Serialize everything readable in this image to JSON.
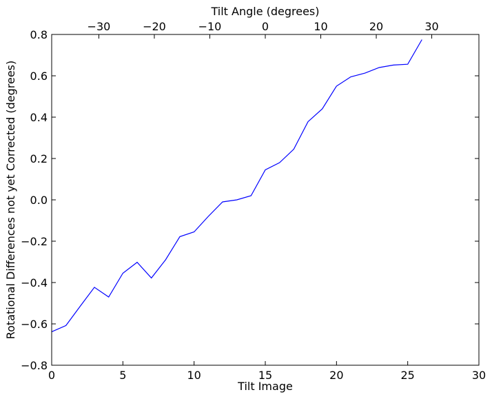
{
  "chart_data": {
    "type": "line",
    "title": "",
    "xlabel": "Tilt Image",
    "ylabel": "Rotational Differences not yet Corrected (degrees)",
    "top_xlabel": "Tilt Angle (degrees)",
    "xlim": [
      0,
      30
    ],
    "ylim": [
      -0.8,
      0.8
    ],
    "top_xlim": [
      -38.5,
      38.5
    ],
    "grid": false,
    "legend": "none",
    "line_color": "#0000ff",
    "x_ticks": [
      "0",
      "5",
      "10",
      "15",
      "20",
      "25",
      "30"
    ],
    "x_tick_values": [
      0,
      5,
      10,
      15,
      20,
      25,
      30
    ],
    "y_ticks": [
      "0.8",
      "0.6",
      "0.4",
      "0.2",
      "0.0",
      "−0.2",
      "−0.4",
      "−0.6",
      "−0.8"
    ],
    "y_tick_values": [
      0.8,
      0.6,
      0.4,
      0.2,
      0.0,
      -0.2,
      -0.4,
      -0.6,
      -0.8
    ],
    "top_x_ticks": [
      "−30",
      "−20",
      "−10",
      "0",
      "10",
      "20",
      "30"
    ],
    "top_x_tick_values": [
      -30,
      -20,
      -10,
      0,
      10,
      20,
      30
    ],
    "series": [
      {
        "x": [
          0,
          1,
          2,
          3,
          4,
          5,
          6,
          7,
          8,
          9,
          10,
          11,
          12,
          13,
          14,
          15,
          16,
          17,
          18,
          19,
          20,
          21,
          22,
          23,
          24,
          25,
          26
        ],
        "values": [
          -0.638,
          -0.608,
          -0.515,
          -0.423,
          -0.47,
          -0.355,
          -0.302,
          -0.378,
          -0.29,
          -0.178,
          -0.155,
          -0.08,
          -0.01,
          0.0,
          0.02,
          0.145,
          0.18,
          0.245,
          0.378,
          0.44,
          0.55,
          0.595,
          0.613,
          0.64,
          0.652,
          0.656,
          0.775
        ]
      }
    ]
  }
}
